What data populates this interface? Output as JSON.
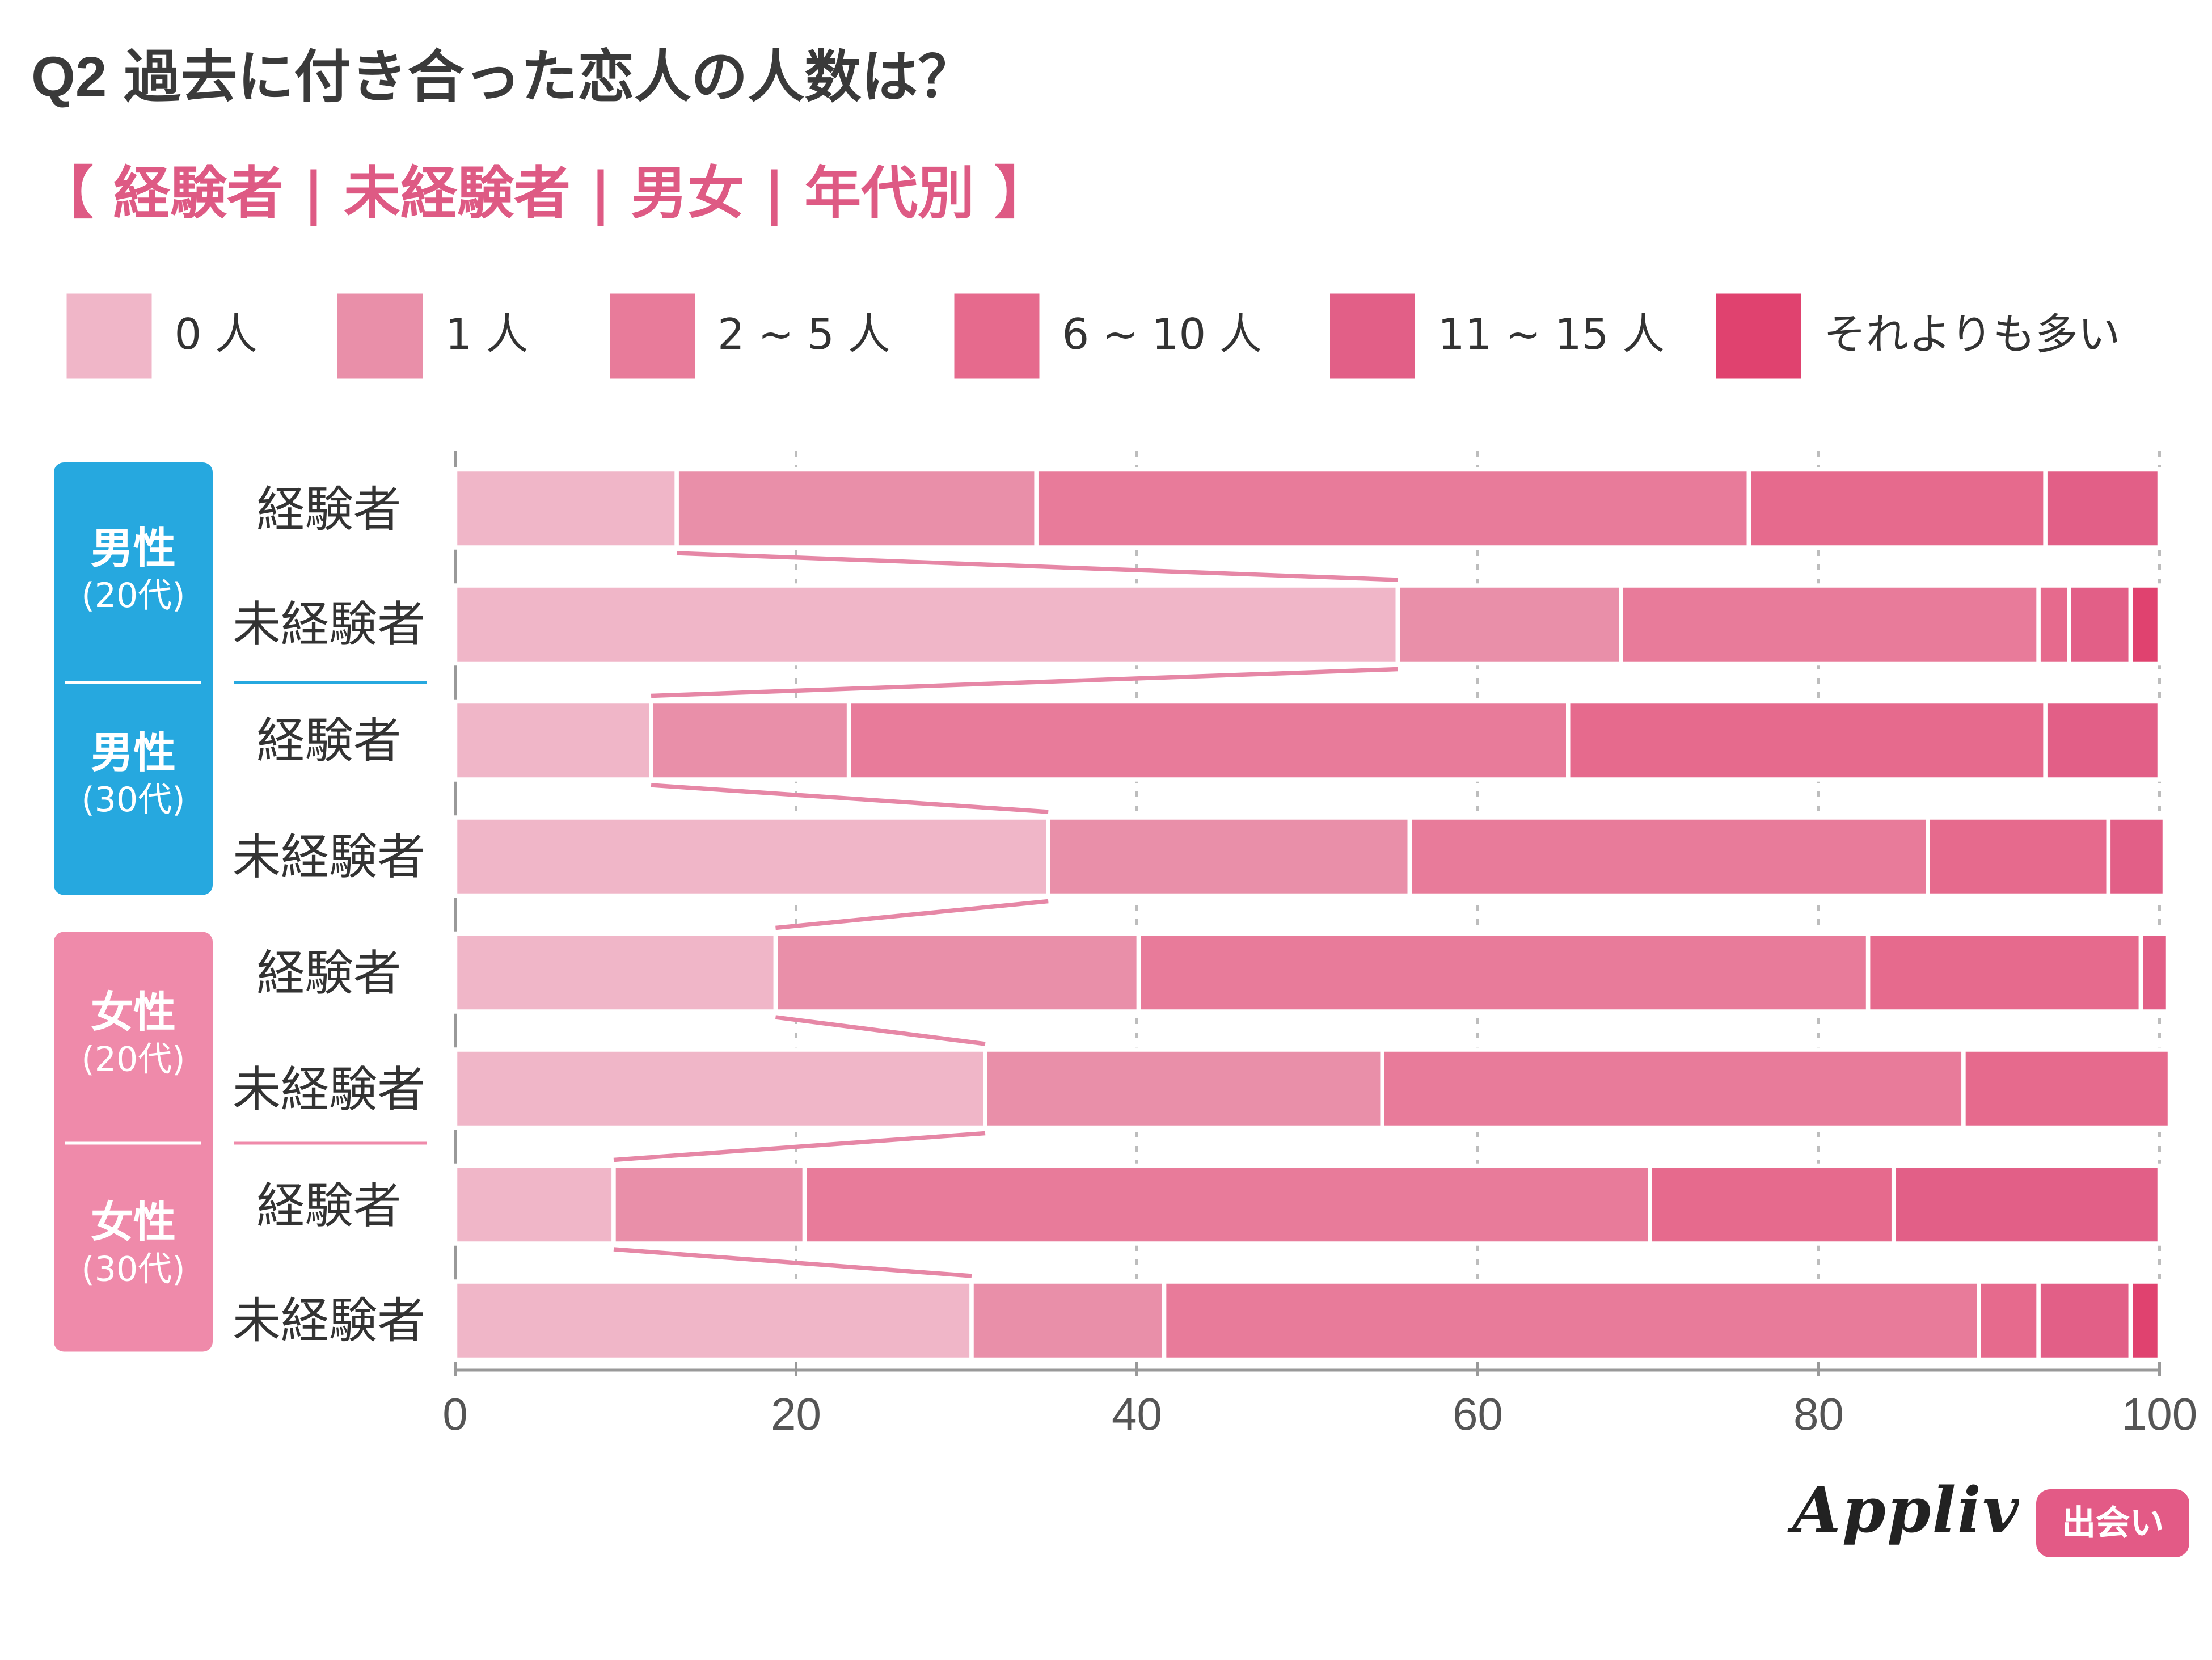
{
  "header": {
    "q_number": "Q2",
    "question": "過去に付き合った恋人の人数は？",
    "subtitle": "【 経験者 | 未経験者 | 男女 | 年代別 】"
  },
  "colors": {
    "title": "#3a3a3a",
    "subtitle": "#de5a84",
    "male_group": "#26a8df",
    "female_group": "#ef8aaa",
    "connector": "#e687a6"
  },
  "groups": [
    {
      "main": "男性",
      "sub": "(20代)",
      "color": "#26a8df"
    },
    {
      "main": "男性",
      "sub": "(30代)",
      "color": "#26a8df"
    },
    {
      "main": "女性",
      "sub": "(20代)",
      "color": "#ef8aaa"
    },
    {
      "main": "女性",
      "sub": "(30代)",
      "color": "#ef8aaa"
    }
  ],
  "chart_data": {
    "type": "bar",
    "orientation": "horizontal",
    "stacked": true,
    "categories": [
      "経験者",
      "未経験者",
      "経験者",
      "未経験者",
      "経験者",
      "未経験者",
      "経験者",
      "未経験者"
    ],
    "series": [
      {
        "name": "0 人",
        "color": "#f0b6c8",
        "values": [
          13,
          55.3,
          11.5,
          34.8,
          18.8,
          31.1,
          9.3,
          30.3
        ]
      },
      {
        "name": "1 人",
        "color": "#e98fa9",
        "values": [
          21.1,
          13.1,
          11.6,
          21.2,
          21.3,
          23.3,
          11.2,
          11.3
        ]
      },
      {
        "name": "2 ~ 5 人",
        "color": "#e87b9a",
        "values": [
          41.8,
          24.5,
          42.2,
          30.4,
          42.8,
          34.1,
          49.6,
          47.8
        ]
      },
      {
        "name": "6 ~ 10 人",
        "color": "#e66a8d",
        "values": [
          17.4,
          1.8,
          28.0,
          10.6,
          16.0,
          12.1,
          14.3,
          3.5
        ]
      },
      {
        "name": "11 ~ 15 人",
        "color": "#e25f87",
        "values": [
          6.7,
          3.6,
          6.7,
          3.3,
          1.6,
          0,
          15.6,
          5.4
        ]
      },
      {
        "name": "それよりも多い",
        "color": "#e0426f",
        "values": [
          0,
          1.7,
          0,
          0,
          0,
          0,
          0,
          1.7
        ]
      }
    ],
    "xlim": [
      0,
      100
    ],
    "xticks": [
      "0",
      "20",
      "40",
      "60",
      "80",
      "100"
    ],
    "grid": true,
    "legend": "top"
  },
  "logo": {
    "brand": "Appliv",
    "tag": "出会い"
  }
}
